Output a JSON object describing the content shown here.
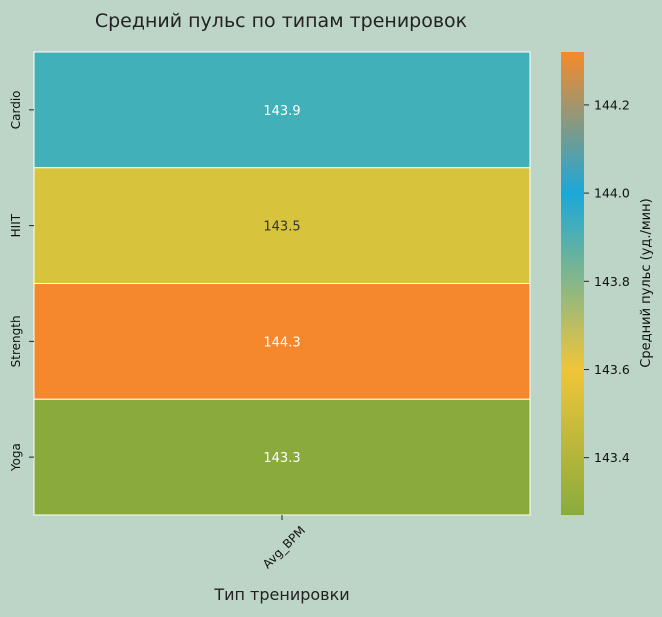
{
  "chart_data": {
    "type": "heatmap",
    "title": "Средний пульс по типам тренировок",
    "xlabel": "Тип тренировки",
    "ylabel": "",
    "x_categories": [
      "Avg_BPM"
    ],
    "y_categories": [
      "Cardio",
      "HIIT",
      "Strength",
      "Yoga"
    ],
    "values": [
      [
        143.9
      ],
      [
        143.5
      ],
      [
        144.3
      ],
      [
        143.3
      ]
    ],
    "value_labels": [
      "143.9",
      "143.5",
      "144.3",
      "143.3"
    ],
    "colorbar": {
      "label": "Средний пульс (уд./мин)",
      "range": [
        143.27,
        144.32
      ],
      "ticks": [
        143.4,
        143.6,
        143.8,
        144.0,
        144.2
      ],
      "tick_labels": [
        "143.4",
        "143.6",
        "143.8",
        "144.0",
        "144.2"
      ],
      "colormap": [
        {
          "value": 143.27,
          "color": "#8aab3c"
        },
        {
          "value": 143.6,
          "color": "#f0c53a"
        },
        {
          "value": 144.0,
          "color": "#1ba8d8"
        },
        {
          "value": 144.32,
          "color": "#f68a2a"
        }
      ]
    },
    "cell_colors": [
      "#42b0b8",
      "#d8c43c",
      "#f5882c",
      "#8aab3c"
    ],
    "label_colors": [
      "#ffffff",
      "#333333",
      "#ffffff",
      "#ffffff"
    ],
    "background": "#bdd5c7",
    "x_tick_rotation": "45deg"
  }
}
